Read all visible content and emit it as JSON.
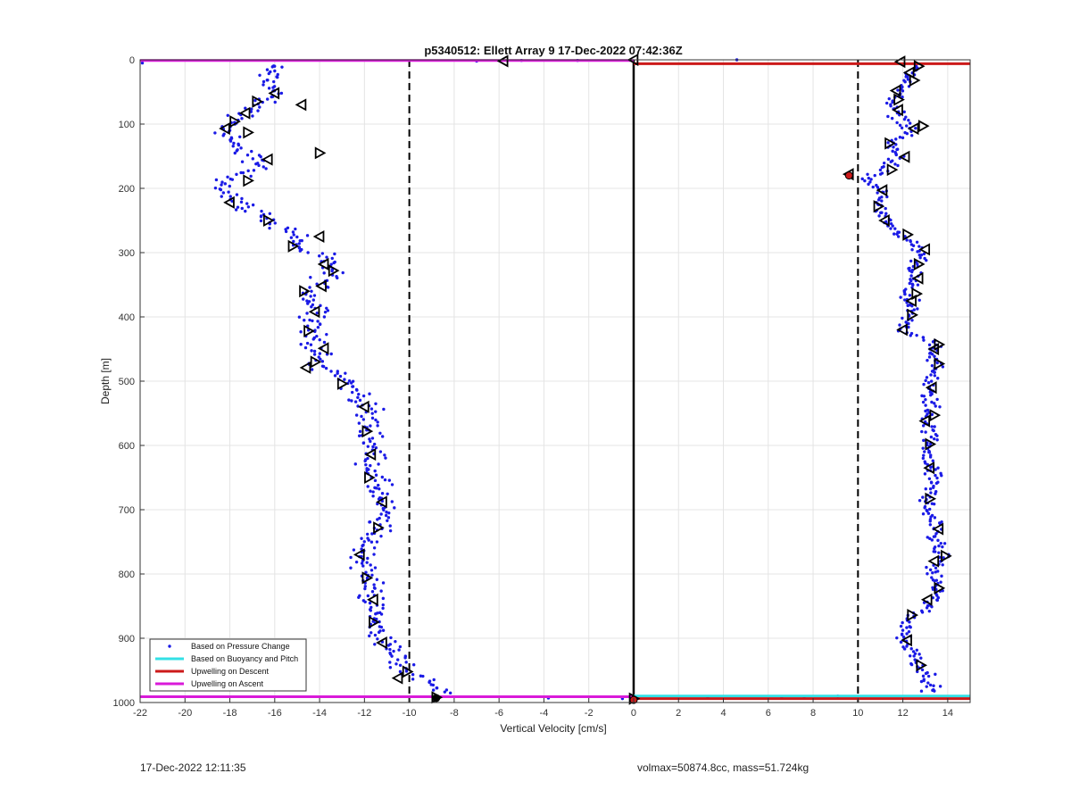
{
  "chart_data": {
    "type": "scatter",
    "title": "p5340512: Ellett Array 9 17-Dec-2022 07:42:36Z",
    "xlabel": "Vertical Velocity [cm/s]",
    "ylabel": "Depth [m]",
    "xlim": [
      -22,
      15
    ],
    "ylim": [
      0,
      1000
    ],
    "y_reversed": true,
    "grid": true,
    "xticks": [
      "-22",
      "-20",
      "-18",
      "-16",
      "-14",
      "-12",
      "-10",
      "-8",
      "-6",
      "-4",
      "-2",
      "0",
      "2",
      "4",
      "6",
      "8",
      "10",
      "12",
      "14"
    ],
    "yticks": [
      "0",
      "100",
      "200",
      "300",
      "400",
      "500",
      "600",
      "700",
      "800",
      "900",
      "1000"
    ],
    "colors": {
      "pressure": "#1a1ae6",
      "buoyancy": "#33e0e6",
      "descent": "#cc1a1a",
      "ascent": "#d91ad9",
      "zero_line": "#000000",
      "dashed": "#000000"
    },
    "legend": {
      "position": "bottom-left",
      "entries": [
        {
          "label": "Based on Pressure Change",
          "color": "#1a1ae6",
          "style": "dot"
        },
        {
          "label": "Based on Buoyancy and Pitch",
          "color": "#33e0e6",
          "style": "line"
        },
        {
          "label": "Upwelling on Descent",
          "color": "#cc1a1a",
          "style": "line"
        },
        {
          "label": "Upwelling on Ascent",
          "color": "#d91ad9",
          "style": "line"
        }
      ]
    },
    "reference_lines": {
      "vertical_dashed": [
        -10,
        10
      ],
      "vertical_solid": [
        0
      ],
      "horizontal": [
        {
          "series": "ascent",
          "y": 1,
          "x_from": -22,
          "x_to": 0
        },
        {
          "series": "descent",
          "y": 6,
          "x_from": 0,
          "x_to": 15
        },
        {
          "series": "buoyancy",
          "y": 990,
          "x_from": 0,
          "x_to": 15
        },
        {
          "series": "descent",
          "y": 994,
          "x_from": 0,
          "x_to": 15
        },
        {
          "series": "ascent",
          "y": 991,
          "x_from": -22,
          "x_to": 0
        }
      ]
    },
    "descent_profile": [
      {
        "depth": 5,
        "vel": -16.0
      },
      {
        "depth": 20,
        "vel": -16.3
      },
      {
        "depth": 40,
        "vel": -16.2
      },
      {
        "depth": 55,
        "vel": -16.0
      },
      {
        "depth": 70,
        "vel": -16.8
      },
      {
        "depth": 85,
        "vel": -17.3
      },
      {
        "depth": 100,
        "vel": -17.8
      },
      {
        "depth": 110,
        "vel": -18.3
      },
      {
        "depth": 130,
        "vel": -18.0
      },
      {
        "depth": 150,
        "vel": -16.8
      },
      {
        "depth": 170,
        "vel": -17.0
      },
      {
        "depth": 190,
        "vel": -18.2
      },
      {
        "depth": 210,
        "vel": -18.0
      },
      {
        "depth": 230,
        "vel": -17.2
      },
      {
        "depth": 250,
        "vel": -16.3
      },
      {
        "depth": 270,
        "vel": -15.0
      },
      {
        "depth": 290,
        "vel": -15.0
      },
      {
        "depth": 310,
        "vel": -13.8
      },
      {
        "depth": 330,
        "vel": -13.5
      },
      {
        "depth": 350,
        "vel": -14.0
      },
      {
        "depth": 370,
        "vel": -14.4
      },
      {
        "depth": 390,
        "vel": -14.0
      },
      {
        "depth": 410,
        "vel": -14.2
      },
      {
        "depth": 430,
        "vel": -14.4
      },
      {
        "depth": 450,
        "vel": -14.0
      },
      {
        "depth": 470,
        "vel": -14.3
      },
      {
        "depth": 490,
        "vel": -13.0
      },
      {
        "depth": 510,
        "vel": -12.6
      },
      {
        "depth": 530,
        "vel": -12.0
      },
      {
        "depth": 550,
        "vel": -11.9
      },
      {
        "depth": 580,
        "vel": -11.7
      },
      {
        "depth": 610,
        "vel": -11.7
      },
      {
        "depth": 640,
        "vel": -11.6
      },
      {
        "depth": 670,
        "vel": -11.4
      },
      {
        "depth": 700,
        "vel": -11.2
      },
      {
        "depth": 730,
        "vel": -11.4
      },
      {
        "depth": 760,
        "vel": -12.0
      },
      {
        "depth": 790,
        "vel": -12.0
      },
      {
        "depth": 820,
        "vel": -11.7
      },
      {
        "depth": 850,
        "vel": -11.6
      },
      {
        "depth": 880,
        "vel": -11.5
      },
      {
        "depth": 910,
        "vel": -11.0
      },
      {
        "depth": 940,
        "vel": -10.4
      },
      {
        "depth": 955,
        "vel": -10.0
      },
      {
        "depth": 970,
        "vel": -9.0
      },
      {
        "depth": 980,
        "vel": -8.3
      }
    ],
    "ascent_profile": [
      {
        "depth": 10,
        "vel": 12.5
      },
      {
        "depth": 30,
        "vel": 12.3
      },
      {
        "depth": 50,
        "vel": 11.8
      },
      {
        "depth": 70,
        "vel": 11.6
      },
      {
        "depth": 90,
        "vel": 11.8
      },
      {
        "depth": 110,
        "vel": 12.4
      },
      {
        "depth": 130,
        "vel": 11.4
      },
      {
        "depth": 150,
        "vel": 11.8
      },
      {
        "depth": 170,
        "vel": 11.2
      },
      {
        "depth": 185,
        "vel": 10.2
      },
      {
        "depth": 200,
        "vel": 11.0
      },
      {
        "depth": 220,
        "vel": 11.0
      },
      {
        "depth": 240,
        "vel": 10.9
      },
      {
        "depth": 260,
        "vel": 11.3
      },
      {
        "depth": 280,
        "vel": 12.2
      },
      {
        "depth": 300,
        "vel": 12.8
      },
      {
        "depth": 320,
        "vel": 12.5
      },
      {
        "depth": 340,
        "vel": 12.4
      },
      {
        "depth": 360,
        "vel": 12.2
      },
      {
        "depth": 380,
        "vel": 12.3
      },
      {
        "depth": 400,
        "vel": 12.2
      },
      {
        "depth": 420,
        "vel": 11.9
      },
      {
        "depth": 440,
        "vel": 13.5
      },
      {
        "depth": 460,
        "vel": 13.4
      },
      {
        "depth": 480,
        "vel": 13.4
      },
      {
        "depth": 500,
        "vel": 13.2
      },
      {
        "depth": 520,
        "vel": 13.1
      },
      {
        "depth": 540,
        "vel": 13.3
      },
      {
        "depth": 560,
        "vel": 13.1
      },
      {
        "depth": 580,
        "vel": 13.2
      },
      {
        "depth": 600,
        "vel": 13.2
      },
      {
        "depth": 620,
        "vel": 13.2
      },
      {
        "depth": 640,
        "vel": 13.3
      },
      {
        "depth": 660,
        "vel": 13.4
      },
      {
        "depth": 680,
        "vel": 13.1
      },
      {
        "depth": 700,
        "vel": 13.1
      },
      {
        "depth": 720,
        "vel": 13.4
      },
      {
        "depth": 740,
        "vel": 13.5
      },
      {
        "depth": 760,
        "vel": 13.5
      },
      {
        "depth": 775,
        "vel": 13.9
      },
      {
        "depth": 790,
        "vel": 13.3
      },
      {
        "depth": 810,
        "vel": 13.5
      },
      {
        "depth": 830,
        "vel": 13.5
      },
      {
        "depth": 850,
        "vel": 13.2
      },
      {
        "depth": 865,
        "vel": 12.4
      },
      {
        "depth": 885,
        "vel": 12.2
      },
      {
        "depth": 905,
        "vel": 12.0
      },
      {
        "depth": 925,
        "vel": 12.6
      },
      {
        "depth": 945,
        "vel": 12.8
      },
      {
        "depth": 965,
        "vel": 13.3
      },
      {
        "depth": 980,
        "vel": 13.2
      }
    ],
    "descent_markers": [
      [
        -16.0,
        52
      ],
      [
        -16.8,
        65
      ],
      [
        -17.3,
        83
      ],
      [
        -17.8,
        96
      ],
      [
        -18.2,
        107
      ],
      [
        -17.2,
        113
      ],
      [
        -14.8,
        70
      ],
      [
        -14.0,
        145
      ],
      [
        -16.3,
        155
      ],
      [
        -17.2,
        188
      ],
      [
        -18.0,
        222
      ],
      [
        -16.3,
        250
      ],
      [
        -14.0,
        275
      ],
      [
        -15.2,
        290
      ],
      [
        -13.8,
        318
      ],
      [
        -13.4,
        328
      ],
      [
        -13.9,
        352
      ],
      [
        -14.7,
        360
      ],
      [
        -14.2,
        392
      ],
      [
        -14.5,
        422
      ],
      [
        -13.8,
        449
      ],
      [
        -14.2,
        470
      ],
      [
        -14.6,
        479
      ],
      [
        -13.0,
        504
      ],
      [
        -12.0,
        540
      ],
      [
        -11.9,
        578
      ],
      [
        -11.7,
        614
      ],
      [
        -11.8,
        650
      ],
      [
        -11.2,
        688
      ],
      [
        -11.4,
        728
      ],
      [
        -12.2,
        770
      ],
      [
        -11.9,
        806
      ],
      [
        -11.6,
        840
      ],
      [
        -11.6,
        875
      ],
      [
        -11.2,
        907
      ],
      [
        -10.1,
        952
      ],
      [
        -10.5,
        962
      ],
      [
        -8.8,
        992
      ],
      [
        -5.8,
        2
      ]
    ],
    "ascent_markers": [
      [
        11.9,
        3
      ],
      [
        12.7,
        10
      ],
      [
        12.3,
        20
      ],
      [
        12.5,
        32
      ],
      [
        11.7,
        48
      ],
      [
        11.8,
        62
      ],
      [
        11.8,
        78
      ],
      [
        12.9,
        103
      ],
      [
        12.5,
        107
      ],
      [
        11.4,
        130
      ],
      [
        12.1,
        151
      ],
      [
        11.5,
        171
      ],
      [
        11.1,
        203
      ],
      [
        10.9,
        228
      ],
      [
        11.2,
        250
      ],
      [
        12.2,
        272
      ],
      [
        13.0,
        295
      ],
      [
        12.7,
        318
      ],
      [
        12.7,
        340
      ],
      [
        12.6,
        364
      ],
      [
        12.4,
        375
      ],
      [
        12.4,
        397
      ],
      [
        12.0,
        420
      ],
      [
        13.6,
        443
      ],
      [
        13.4,
        450
      ],
      [
        13.6,
        473
      ],
      [
        13.3,
        510
      ],
      [
        13.4,
        553
      ],
      [
        13.0,
        562
      ],
      [
        13.2,
        598
      ],
      [
        13.2,
        635
      ],
      [
        13.2,
        683
      ],
      [
        13.6,
        730
      ],
      [
        13.9,
        772
      ],
      [
        13.4,
        780
      ],
      [
        13.6,
        822
      ],
      [
        13.1,
        840
      ],
      [
        12.4,
        864
      ],
      [
        12.2,
        903
      ],
      [
        12.8,
        942
      ],
      [
        9.6,
        178
      ],
      [
        0.0,
        994
      ],
      [
        0.0,
        0
      ]
    ],
    "sparse_points": [
      [
        -21.9,
        5
      ],
      [
        -7.0,
        2
      ],
      [
        -5.0,
        1
      ],
      [
        -2.5,
        1
      ],
      [
        4.6,
        0
      ],
      [
        -3.8,
        993
      ],
      [
        3.3,
        992
      ],
      [
        6.6,
        991
      ],
      [
        7.6,
        991
      ],
      [
        9.1,
        990
      ],
      [
        -0.5,
        994
      ]
    ]
  },
  "footer": {
    "left": "17-Dec-2022 12:11:35",
    "right": "volmax=50874.8cc, mass=51.724kg"
  }
}
